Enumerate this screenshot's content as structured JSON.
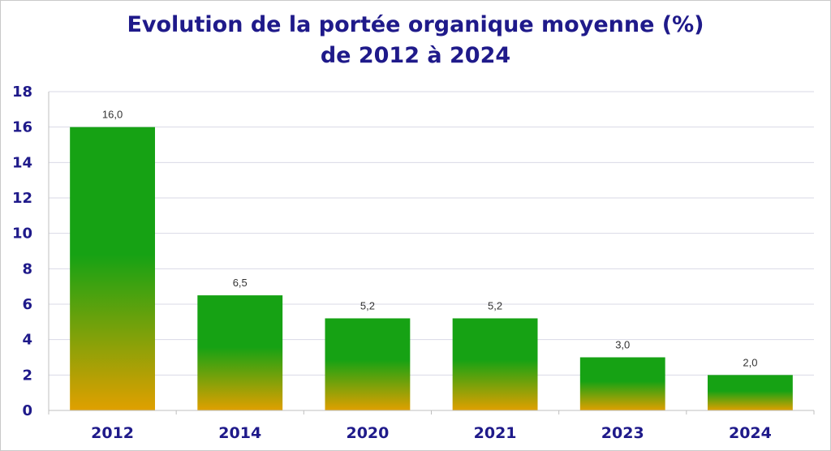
{
  "chart_data": {
    "type": "bar",
    "title_line1": "Evolution de la portée organique moyenne (%)",
    "title_line2": "de 2012 à 2024",
    "categories": [
      "2012",
      "2014",
      "2020",
      "2021",
      "2023",
      "2024"
    ],
    "values": [
      16.0,
      6.5,
      5.2,
      5.2,
      3.0,
      2.0
    ],
    "data_labels": [
      "16,0",
      "6,5",
      "5,2",
      "5,2",
      "3,0",
      "2,0"
    ],
    "y_ticks": [
      "0",
      "2",
      "4",
      "6",
      "8",
      "10",
      "12",
      "14",
      "16",
      "18"
    ],
    "ylim": [
      0,
      18
    ],
    "grid": true,
    "legend": "none",
    "colors": {
      "bar_top": "#16a214",
      "bar_bottom": "#e0a000",
      "text": "#1f1a8a",
      "grid": "#d9d9e6"
    }
  }
}
